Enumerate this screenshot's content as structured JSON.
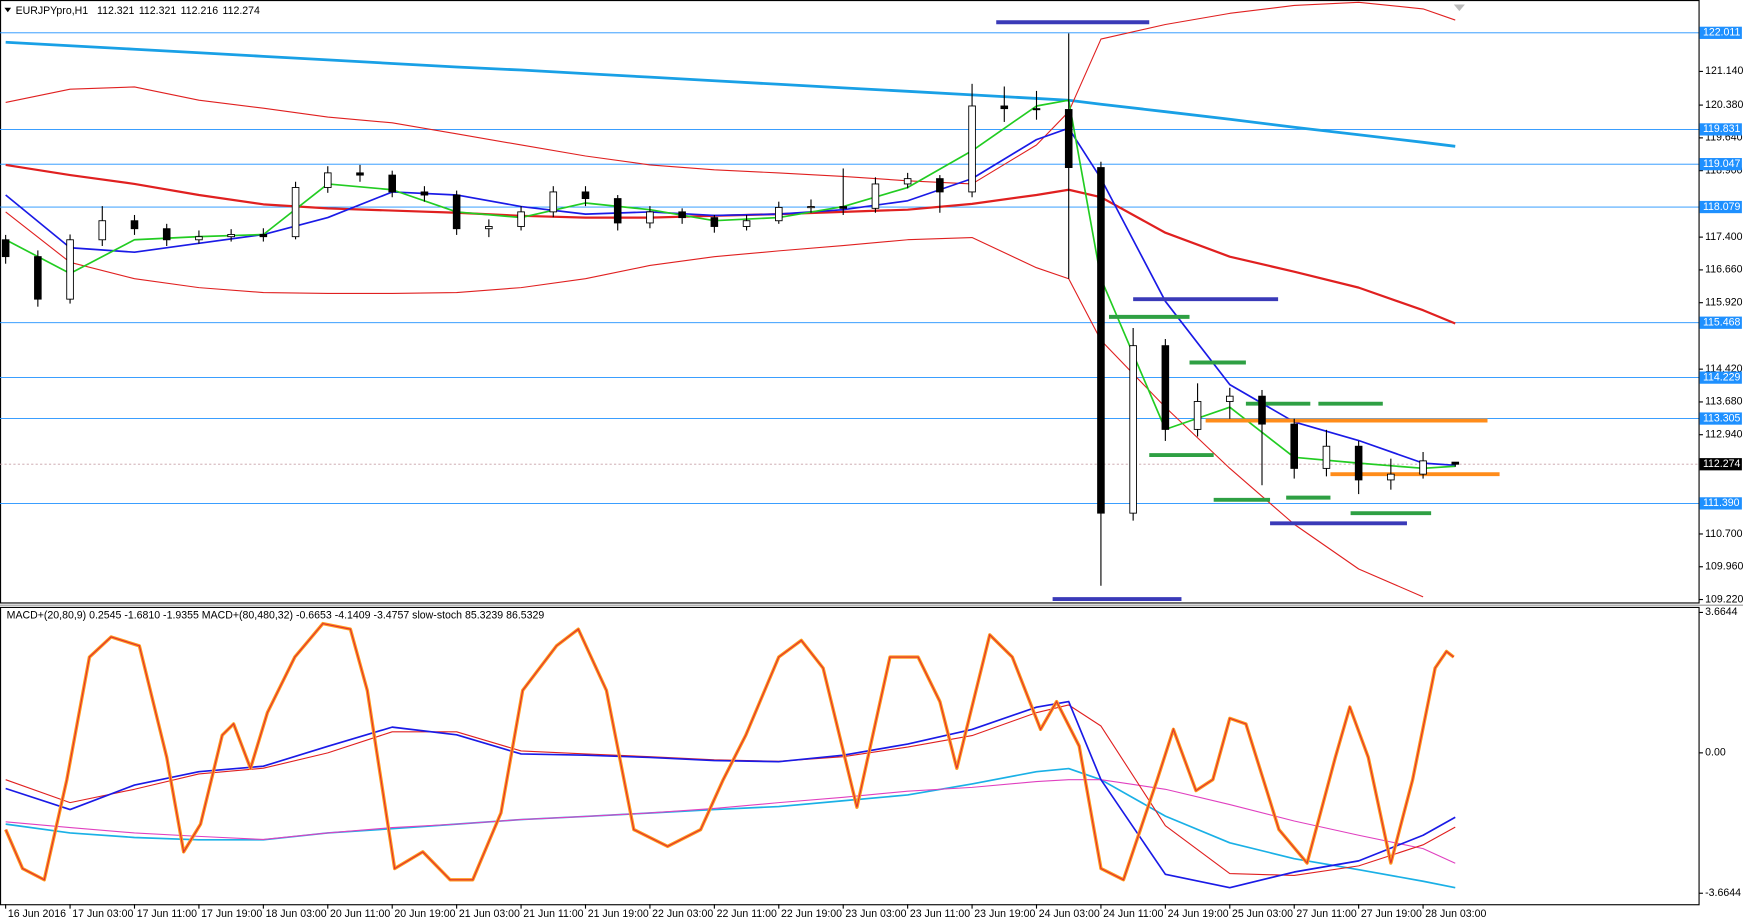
{
  "chart_data": [
    {
      "type": "candlestick",
      "title": "EURJPYpro,H1",
      "header_values": [
        112.321,
        112.321,
        112.216,
        112.274
      ],
      "xlim": [
        -0.7,
        210.2
      ],
      "xticks": [
        {
          "value": 0,
          "label": "16 Jun 2016"
        },
        {
          "value": 8,
          "label": "17 Jun 03:00"
        },
        {
          "value": 16,
          "label": "17 Jun 11:00"
        },
        {
          "value": 24,
          "label": "17 Jun 19:00"
        },
        {
          "value": 32,
          "label": "18 Jun 03:00"
        },
        {
          "value": 40,
          "label": "20 Jun 11:00"
        },
        {
          "value": 48,
          "label": "20 Jun 19:00"
        },
        {
          "value": 56,
          "label": "21 Jun 03:00"
        },
        {
          "value": 64,
          "label": "21 Jun 11:00"
        },
        {
          "value": 72,
          "label": "21 Jun 19:00"
        },
        {
          "value": 80,
          "label": "22 Jun 03:00"
        },
        {
          "value": 88,
          "label": "22 Jun 11:00"
        },
        {
          "value": 96,
          "label": "22 Jun 19:00"
        },
        {
          "value": 104,
          "label": "23 Jun 03:00"
        },
        {
          "value": 112,
          "label": "23 Jun 11:00"
        },
        {
          "value": 120,
          "label": "23 Jun 19:00"
        },
        {
          "value": 128,
          "label": "24 Jun 03:00"
        },
        {
          "value": 136,
          "label": "24 Jun 11:00"
        },
        {
          "value": 144,
          "label": "24 Jun 19:00"
        },
        {
          "value": 152,
          "label": "25 Jun 03:00"
        },
        {
          "value": 160,
          "label": "27 Jun 11:00"
        },
        {
          "value": 168,
          "label": "27 Jun 19:00"
        },
        {
          "value": 176,
          "label": "28 Jun 03:00"
        }
      ],
      "x": [
        0,
        4,
        8,
        12,
        16,
        20,
        24,
        28,
        32,
        36,
        40,
        44,
        48,
        52,
        56,
        60,
        64,
        68,
        72,
        76,
        80,
        84,
        88,
        92,
        96,
        100,
        104,
        108,
        112,
        116,
        120,
        124,
        128,
        132,
        136,
        140,
        144,
        148,
        152,
        156,
        160,
        164,
        168,
        172,
        176,
        180
      ],
      "open": [
        117.34,
        116.96,
        116.0,
        117.34,
        117.77,
        117.59,
        117.34,
        117.41,
        117.46,
        117.41,
        118.52,
        118.85,
        118.8,
        118.42,
        118.35,
        117.59,
        117.64,
        117.97,
        118.42,
        118.27,
        117.72,
        117.97,
        117.84,
        117.64,
        117.77,
        118.07,
        118.09,
        118.05,
        118.6,
        118.72,
        118.42,
        120.36,
        120.3,
        120.28,
        118.97,
        111.17,
        114.95,
        113.06,
        113.69,
        113.81,
        113.18,
        112.18,
        112.68,
        111.92,
        112.05,
        112.321
      ],
      "high": [
        117.45,
        117.1,
        117.46,
        118.1,
        117.9,
        117.7,
        117.55,
        117.58,
        117.6,
        118.65,
        119.0,
        119.03,
        118.9,
        118.55,
        118.45,
        117.8,
        118.1,
        118.55,
        118.55,
        118.35,
        118.1,
        118.05,
        117.9,
        117.9,
        118.2,
        118.25,
        118.95,
        118.75,
        118.85,
        118.8,
        120.86,
        120.8,
        120.7,
        122.0,
        119.1,
        115.35,
        115.1,
        114.1,
        114.0,
        113.95,
        113.3,
        113.05,
        112.8,
        112.4,
        112.55,
        112.321
      ],
      "low": [
        116.8,
        115.83,
        115.9,
        117.2,
        117.45,
        117.2,
        117.25,
        117.3,
        117.3,
        117.35,
        118.4,
        118.65,
        118.3,
        118.2,
        117.45,
        117.4,
        117.55,
        117.85,
        118.1,
        117.55,
        117.6,
        117.7,
        117.5,
        117.55,
        117.7,
        117.95,
        117.9,
        117.95,
        118.5,
        117.95,
        118.3,
        120.0,
        120.05,
        116.46,
        109.53,
        111.0,
        112.8,
        112.9,
        113.3,
        111.8,
        111.95,
        112.0,
        111.6,
        111.7,
        111.95,
        112.216
      ],
      "close": [
        116.96,
        116.0,
        117.34,
        117.77,
        117.59,
        117.34,
        117.41,
        117.46,
        117.41,
        118.52,
        118.85,
        118.8,
        118.42,
        118.35,
        117.59,
        117.64,
        117.97,
        118.42,
        118.27,
        117.72,
        117.97,
        117.84,
        117.64,
        117.77,
        118.07,
        118.09,
        118.05,
        118.6,
        118.72,
        118.42,
        120.36,
        120.3,
        120.28,
        118.97,
        111.17,
        114.95,
        113.06,
        113.69,
        113.81,
        113.18,
        112.18,
        112.68,
        111.92,
        112.05,
        112.35,
        112.274
      ],
      "overlays": {
        "x": [
          0,
          8,
          16,
          24,
          32,
          40,
          48,
          56,
          64,
          72,
          80,
          88,
          96,
          104,
          112,
          120,
          128,
          132,
          136,
          144,
          152,
          160,
          168,
          176,
          180
        ],
        "series": [
          {
            "color": "#19a0e6",
            "width": 2.5,
            "values": [
              121.8,
              121.72,
              121.64,
              121.56,
              121.48,
              121.4,
              121.32,
              121.24,
              121.17,
              121.09,
              121.01,
              120.93,
              120.85,
              120.77,
              120.69,
              120.61,
              120.53,
              120.49,
              120.4,
              120.23,
              120.06,
              119.88,
              119.71,
              119.54,
              119.45
            ]
          },
          {
            "color": "#e02020",
            "width": 2,
            "values": [
              119.03,
              118.8,
              118.6,
              118.35,
              118.14,
              118.05,
              118.0,
              117.95,
              117.88,
              117.84,
              117.84,
              117.88,
              117.92,
              117.97,
              118.02,
              118.15,
              118.35,
              118.47,
              118.3,
              117.5,
              116.96,
              116.62,
              116.26,
              115.75,
              115.45
            ]
          },
          {
            "color": "#e02020",
            "width": 1,
            "values": [
              120.44,
              120.74,
              120.79,
              120.49,
              120.31,
              120.11,
              119.98,
              119.73,
              119.48,
              119.23,
              119.03,
              118.92,
              118.85,
              118.77,
              118.67,
              118.6,
              119.48,
              120.23,
              121.87,
              122.2,
              122.45,
              122.63,
              122.7,
              122.55,
              122.3
            ]
          },
          {
            "color": "#e02020",
            "width": 1,
            "values": [
              117.97,
              116.83,
              116.46,
              116.26,
              116.15,
              116.13,
              116.13,
              116.15,
              116.26,
              116.46,
              116.76,
              116.96,
              117.09,
              117.21,
              117.34,
              117.39,
              116.71,
              116.46,
              115.07,
              113.56,
              112.18,
              110.92,
              109.91,
              109.28,
              null
            ]
          },
          {
            "color": "#1a1ae6",
            "width": 1.5,
            "values": [
              118.35,
              117.16,
              117.06,
              117.26,
              117.46,
              117.84,
              118.42,
              118.35,
              118.09,
              117.92,
              117.97,
              117.89,
              117.92,
              118.02,
              118.22,
              118.72,
              119.6,
              119.86,
              118.72,
              115.95,
              114.07,
              113.23,
              112.81,
              112.3,
              112.25
            ]
          },
          {
            "color": "#22cc22",
            "width": 1.5,
            "values": [
              117.34,
              116.58,
              117.34,
              117.41,
              117.46,
              118.6,
              118.47,
              117.97,
              117.84,
              118.17,
              118.02,
              117.77,
              117.84,
              118.09,
              118.52,
              119.35,
              120.36,
              120.49,
              116.46,
              113.06,
              113.56,
              112.43,
              112.3,
              112.18,
              112.23
            ]
          }
        ]
      },
      "levels": [
        {
          "x": [
            123,
            142
          ],
          "value": 122.25,
          "color": "#3a3ab8"
        },
        {
          "x": [
            140,
            158
          ],
          "value": 116.0,
          "color": "#3a3ab8"
        },
        {
          "x": [
            157,
            174
          ],
          "value": 110.94,
          "color": "#3a3ab8"
        },
        {
          "x": [
            130,
            146
          ],
          "value": 109.23,
          "color": "#3a3ab8"
        },
        {
          "x": [
            137,
            147
          ],
          "value": 115.6,
          "color": "#2ea043"
        },
        {
          "x": [
            147,
            154
          ],
          "value": 114.57,
          "color": "#2ea043"
        },
        {
          "x": [
            154,
            162
          ],
          "value": 113.64,
          "color": "#2ea043"
        },
        {
          "x": [
            163,
            171
          ],
          "value": 113.64,
          "color": "#2ea043"
        },
        {
          "x": [
            142,
            150
          ],
          "value": 112.48,
          "color": "#2ea043"
        },
        {
          "x": [
            150,
            157
          ],
          "value": 111.47,
          "color": "#2ea043"
        },
        {
          "x": [
            159,
            164.5
          ],
          "value": 111.52,
          "color": "#2ea043"
        },
        {
          "x": [
            167,
            177
          ],
          "value": 111.17,
          "color": "#2ea043"
        },
        {
          "x": [
            149,
            184
          ],
          "value": 113.26,
          "color": "#ff8c1a"
        },
        {
          "x": [
            164.5,
            185.5
          ],
          "value": 112.05,
          "color": "#ff8c1a"
        }
      ],
      "hlines": [
        {
          "value": 122.011,
          "color": "#1e90ff"
        },
        {
          "value": 119.831,
          "color": "#1e90ff"
        },
        {
          "value": 119.047,
          "color": "#1e90ff"
        },
        {
          "value": 118.079,
          "color": "#1e90ff"
        },
        {
          "value": 115.468,
          "color": "#1e90ff"
        },
        {
          "value": 114.229,
          "color": "#1e90ff"
        },
        {
          "value": 113.305,
          "color": "#1e90ff"
        },
        {
          "value": 112.274,
          "color": "#000000",
          "line_color": "#c8a0a8",
          "dashed": true
        },
        {
          "value": 111.39,
          "label": "111.390",
          "color": "#1e90ff"
        }
      ],
      "ylim": [
        109.155,
        122.752
      ],
      "yticks": [
        {
          "value": 121.14,
          "label": "121.140"
        },
        {
          "value": 120.38,
          "label": "120.380"
        },
        {
          "value": 119.64,
          "label": "119.640"
        },
        {
          "value": 118.9,
          "label": "118.900"
        },
        {
          "value": 117.4,
          "label": "117.400"
        },
        {
          "value": 116.66,
          "label": "116.660"
        },
        {
          "value": 115.92,
          "label": "115.920"
        },
        {
          "value": 114.42,
          "label": "114.420"
        },
        {
          "value": 113.68,
          "label": "113.680"
        },
        {
          "value": 112.94,
          "label": "112.940"
        },
        {
          "value": 110.7,
          "label": "110.700"
        },
        {
          "value": 109.96,
          "label": "109.960"
        },
        {
          "value": 109.22,
          "label": "109.220"
        }
      ]
    },
    {
      "type": "line",
      "title": "MACD+(20,80,9) 0.2545 -1.6810 -1.9355  MACD+(80,480,32) -0.6653 -4.1409 -3.4757  slow-stoch 85.3239 86.5329",
      "xlim": [
        -0.7,
        210.2
      ],
      "x": [
        0,
        8,
        16,
        24,
        32,
        40,
        48,
        56,
        64,
        72,
        80,
        88,
        96,
        104,
        112,
        120,
        128,
        132,
        136,
        144,
        152,
        160,
        168,
        176,
        180
      ],
      "ylim": [
        -3.95,
        3.81
      ],
      "yticks": [
        3.6644,
        {
          "value": 0,
          "label": "0.00"
        },
        -3.6644
      ],
      "y2lim": [
        -7.2,
        106.4
      ],
      "series": [
        {
          "color": "#1ab0e6",
          "width": 1.5,
          "values": [
            -1.86,
            -2.09,
            -2.21,
            -2.27,
            -2.27,
            -2.09,
            -1.98,
            -1.86,
            -1.74,
            -1.66,
            -1.57,
            -1.48,
            -1.4,
            -1.25,
            -1.1,
            -0.81,
            -0.49,
            -0.41,
            -0.7,
            -1.65,
            -2.35,
            -2.76,
            -3.05,
            -3.35,
            -3.52
          ]
        },
        {
          "color": "#e040c0",
          "width": 1,
          "values": [
            -1.8,
            -1.95,
            -2.09,
            -2.18,
            -2.26,
            -2.09,
            -1.95,
            -1.86,
            -1.74,
            -1.66,
            -1.57,
            -1.45,
            -1.3,
            -1.16,
            -1.0,
            -0.9,
            -0.75,
            -0.7,
            -0.7,
            -0.95,
            -1.35,
            -1.78,
            -2.15,
            -2.5,
            -2.88
          ]
        },
        {
          "color": "#e02020",
          "width": 1,
          "values": [
            -0.7,
            -1.3,
            -0.95,
            -0.55,
            -0.4,
            0.0,
            0.55,
            0.55,
            0.05,
            -0.03,
            -0.1,
            -0.18,
            -0.22,
            -0.1,
            0.15,
            0.45,
            1.05,
            1.25,
            0.7,
            -1.9,
            -3.15,
            -3.2,
            -2.95,
            -2.4,
            -1.94
          ]
        },
        {
          "color": "#1a1ae6",
          "width": 1.5,
          "values": [
            -0.93,
            -1.48,
            -0.84,
            -0.49,
            -0.35,
            0.17,
            0.67,
            0.47,
            -0.03,
            -0.06,
            -0.12,
            -0.2,
            -0.23,
            -0.06,
            0.23,
            0.61,
            1.19,
            1.34,
            -0.7,
            -3.17,
            -3.52,
            -3.11,
            -2.82,
            -2.15,
            -1.68
          ]
        },
        {
          "color": "#ff9a1f",
          "inner_color": "#e03030",
          "width": 3,
          "axis": "y2",
          "x": [
            0,
            2.1,
            4.8,
            7.6,
            10.4,
            13.1,
            16.6,
            20.0,
            22.1,
            24.2,
            26.9,
            28.3,
            30.4,
            32.5,
            35.9,
            39.4,
            42.8,
            44.9,
            48.3,
            51.8,
            55.2,
            58.0,
            61.5,
            64.2,
            68.4,
            71.1,
            74.6,
            78.0,
            82.2,
            86.3,
            89.1,
            91.9,
            96.0,
            98.8,
            101.5,
            105.7,
            109.8,
            113.3,
            116.0,
            118.1,
            122.2,
            125.0,
            128.5,
            130.5,
            133.3,
            136.0,
            138.8,
            143.0,
            145.0,
            147.8,
            149.9,
            152.0,
            154.0,
            158.1,
            161.6,
            165.1,
            166.9,
            169.2,
            172.0,
            174.7,
            177.5,
            178.9,
            179.8
          ],
          "values": [
            21.3,
            6.4,
            2.1,
            40.4,
            87.2,
            94.9,
            91.5,
            48.9,
            12.8,
            23.4,
            57.4,
            61.7,
            44.7,
            66.0,
            87.2,
            100,
            97.9,
            74.5,
            6.4,
            12.8,
            2.1,
            2.1,
            27.7,
            74.5,
            91.5,
            97.9,
            74.5,
            21.3,
            14.9,
            21.3,
            40.4,
            57.4,
            87.2,
            93.6,
            83.0,
            29.8,
            87.2,
            87.2,
            70.2,
            44.7,
            95.7,
            87.2,
            59.6,
            70.2,
            53.2,
            6.4,
            2.1,
            40.4,
            59.6,
            36.2,
            40.4,
            63.8,
            61.7,
            21.3,
            8.5,
            48.9,
            68.1,
            48.9,
            8.5,
            40.4,
            83.0,
            89.4,
            87.2
          ]
        }
      ]
    }
  ]
}
